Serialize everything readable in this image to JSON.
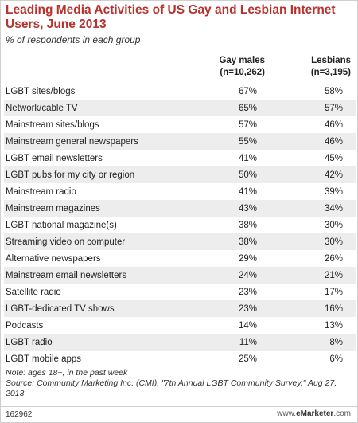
{
  "title": "Leading Media Activities of US Gay and Lesbian Internet Users, June 2013",
  "subtitle": "% of respondents in each group",
  "columns": [
    {
      "name": "Gay males",
      "n": "(n=10,262)"
    },
    {
      "name": "Lesbians",
      "n": "(n=3,195)"
    }
  ],
  "chart_data": {
    "type": "table",
    "title": "Leading Media Activities of US Gay and Lesbian Internet Users, June 2013",
    "subtitle": "% of respondents in each group",
    "series": [
      {
        "name": "Gay males (n=10,262)",
        "values": [
          67,
          65,
          57,
          55,
          41,
          50,
          41,
          43,
          38,
          38,
          29,
          24,
          23,
          23,
          14,
          11,
          25
        ]
      },
      {
        "name": "Lesbians (n=3,195)",
        "values": [
          58,
          57,
          46,
          46,
          45,
          42,
          39,
          34,
          30,
          30,
          26,
          21,
          17,
          16,
          13,
          8,
          6
        ]
      }
    ],
    "rows": [
      {
        "label": "LGBT sites/blogs",
        "gay_males": "67%",
        "lesbians": "58%"
      },
      {
        "label": "Network/cable TV",
        "gay_males": "65%",
        "lesbians": "57%"
      },
      {
        "label": "Mainstream sites/blogs",
        "gay_males": "57%",
        "lesbians": "46%"
      },
      {
        "label": "Mainstream general newspapers",
        "gay_males": "55%",
        "lesbians": "46%"
      },
      {
        "label": "LGBT email newsletters",
        "gay_males": "41%",
        "lesbians": "45%"
      },
      {
        "label": "LGBT pubs for my city or region",
        "gay_males": "50%",
        "lesbians": "42%"
      },
      {
        "label": "Mainstream radio",
        "gay_males": "41%",
        "lesbians": "39%"
      },
      {
        "label": "Mainstream magazines",
        "gay_males": "43%",
        "lesbians": "34%"
      },
      {
        "label": "LGBT national magazine(s)",
        "gay_males": "38%",
        "lesbians": "30%"
      },
      {
        "label": "Streaming video on computer",
        "gay_males": "38%",
        "lesbians": "30%"
      },
      {
        "label": "Alternative newspapers",
        "gay_males": "29%",
        "lesbians": "26%"
      },
      {
        "label": "Mainstream email newsletters",
        "gay_males": "24%",
        "lesbians": "21%"
      },
      {
        "label": "Satellite radio",
        "gay_males": "23%",
        "lesbians": "17%"
      },
      {
        "label": "LGBT-dedicated TV shows",
        "gay_males": "23%",
        "lesbians": "16%"
      },
      {
        "label": "Podcasts",
        "gay_males": "14%",
        "lesbians": "13%"
      },
      {
        "label": "LGBT radio",
        "gay_males": "11%",
        "lesbians": "8%"
      },
      {
        "label": "LGBT mobile apps",
        "gay_males": "25%",
        "lesbians": "6%"
      }
    ]
  },
  "note": "Note: ages 18+; in the past week",
  "source": "Source: Community Marketing Inc. (CMI), \"7th Annual LGBT Community Survey,\" Aug 27, 2013",
  "footer": {
    "id": "162962",
    "site": "www.",
    "brand": "eMarketer",
    "tld": ".com"
  },
  "colors": {
    "title": "#b8322e",
    "stripe": "#ededed"
  }
}
